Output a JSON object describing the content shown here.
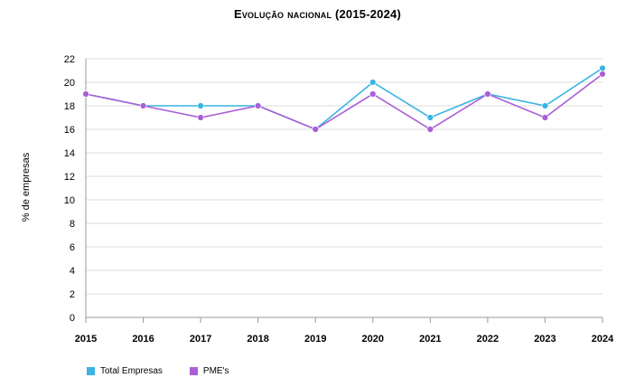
{
  "chart_data": {
    "type": "line",
    "title": "Evolução nacional (2015-2024)",
    "ylabel": "% de empresas",
    "xlabel": "",
    "x": [
      "2015",
      "2016",
      "2017",
      "2018",
      "2019",
      "2020",
      "2021",
      "2022",
      "2023",
      "2024"
    ],
    "ylim": [
      0,
      22
    ],
    "yticks": [
      0,
      2,
      4,
      6,
      8,
      10,
      12,
      14,
      16,
      18,
      20,
      22
    ],
    "grid": true,
    "legend_position": "bottom-left",
    "series": [
      {
        "name": "Total Empresas",
        "color": "#3ab4e3",
        "values": [
          19,
          18,
          18,
          18,
          16,
          20,
          17,
          19,
          18,
          21.2
        ]
      },
      {
        "name": "PME's",
        "color": "#a95fd6",
        "values": [
          19,
          18,
          17,
          18,
          16,
          19,
          16,
          19,
          17,
          20.7
        ]
      }
    ]
  }
}
